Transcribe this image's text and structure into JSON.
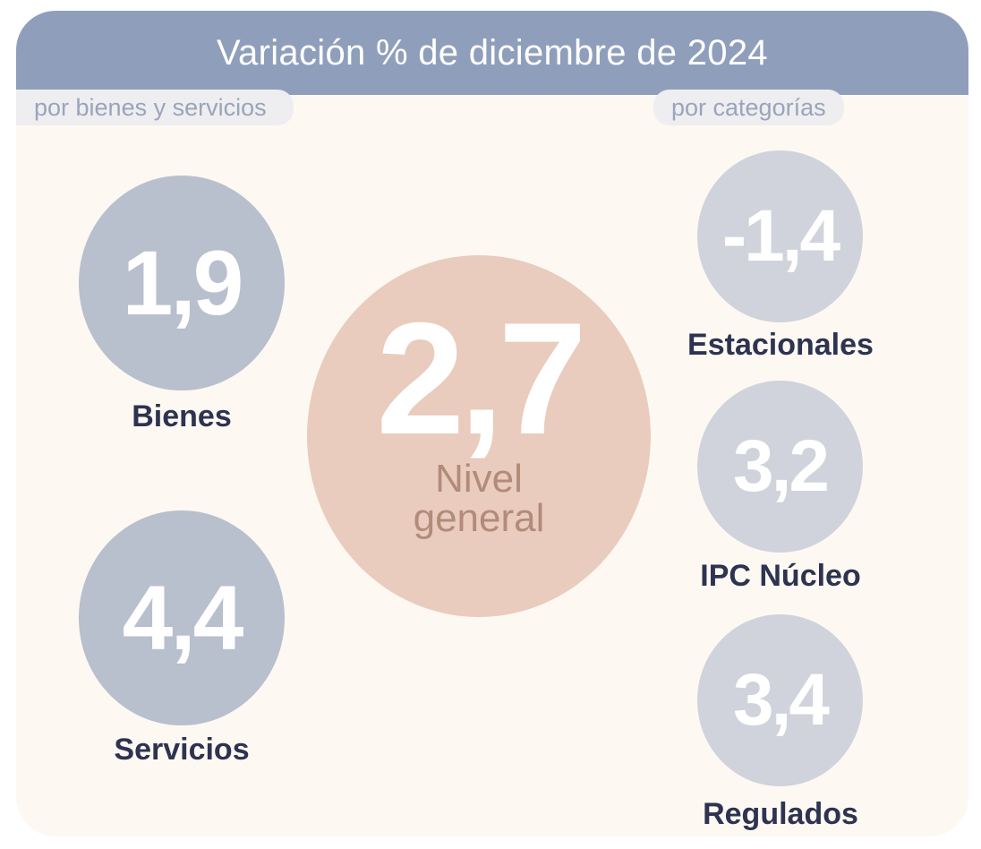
{
  "header": {
    "title": "Variación % de diciembre de 2024"
  },
  "sections": {
    "left_label": "por bienes y servicios",
    "right_label": "por categorías"
  },
  "main": {
    "value": "2,7",
    "label_line1": "Nivel",
    "label_line2": "general"
  },
  "goods_services": [
    {
      "value": "1,9",
      "label": "Bienes"
    },
    {
      "value": "4,4",
      "label": "Servicios"
    }
  ],
  "categories": [
    {
      "value": "-1,4",
      "label": "Estacionales"
    },
    {
      "value": "3,2",
      "label": "IPC Núcleo"
    },
    {
      "value": "3,4",
      "label": "Regulados"
    }
  ],
  "colors": {
    "header": "#8f9fbb",
    "background": "#fdf8f2",
    "goods_circle": "#b8bfcd",
    "category_circle": "#d0d3db",
    "main_circle": "#e9ccbd",
    "main_label": "#b38b7a",
    "label_text": "#2d3350"
  }
}
